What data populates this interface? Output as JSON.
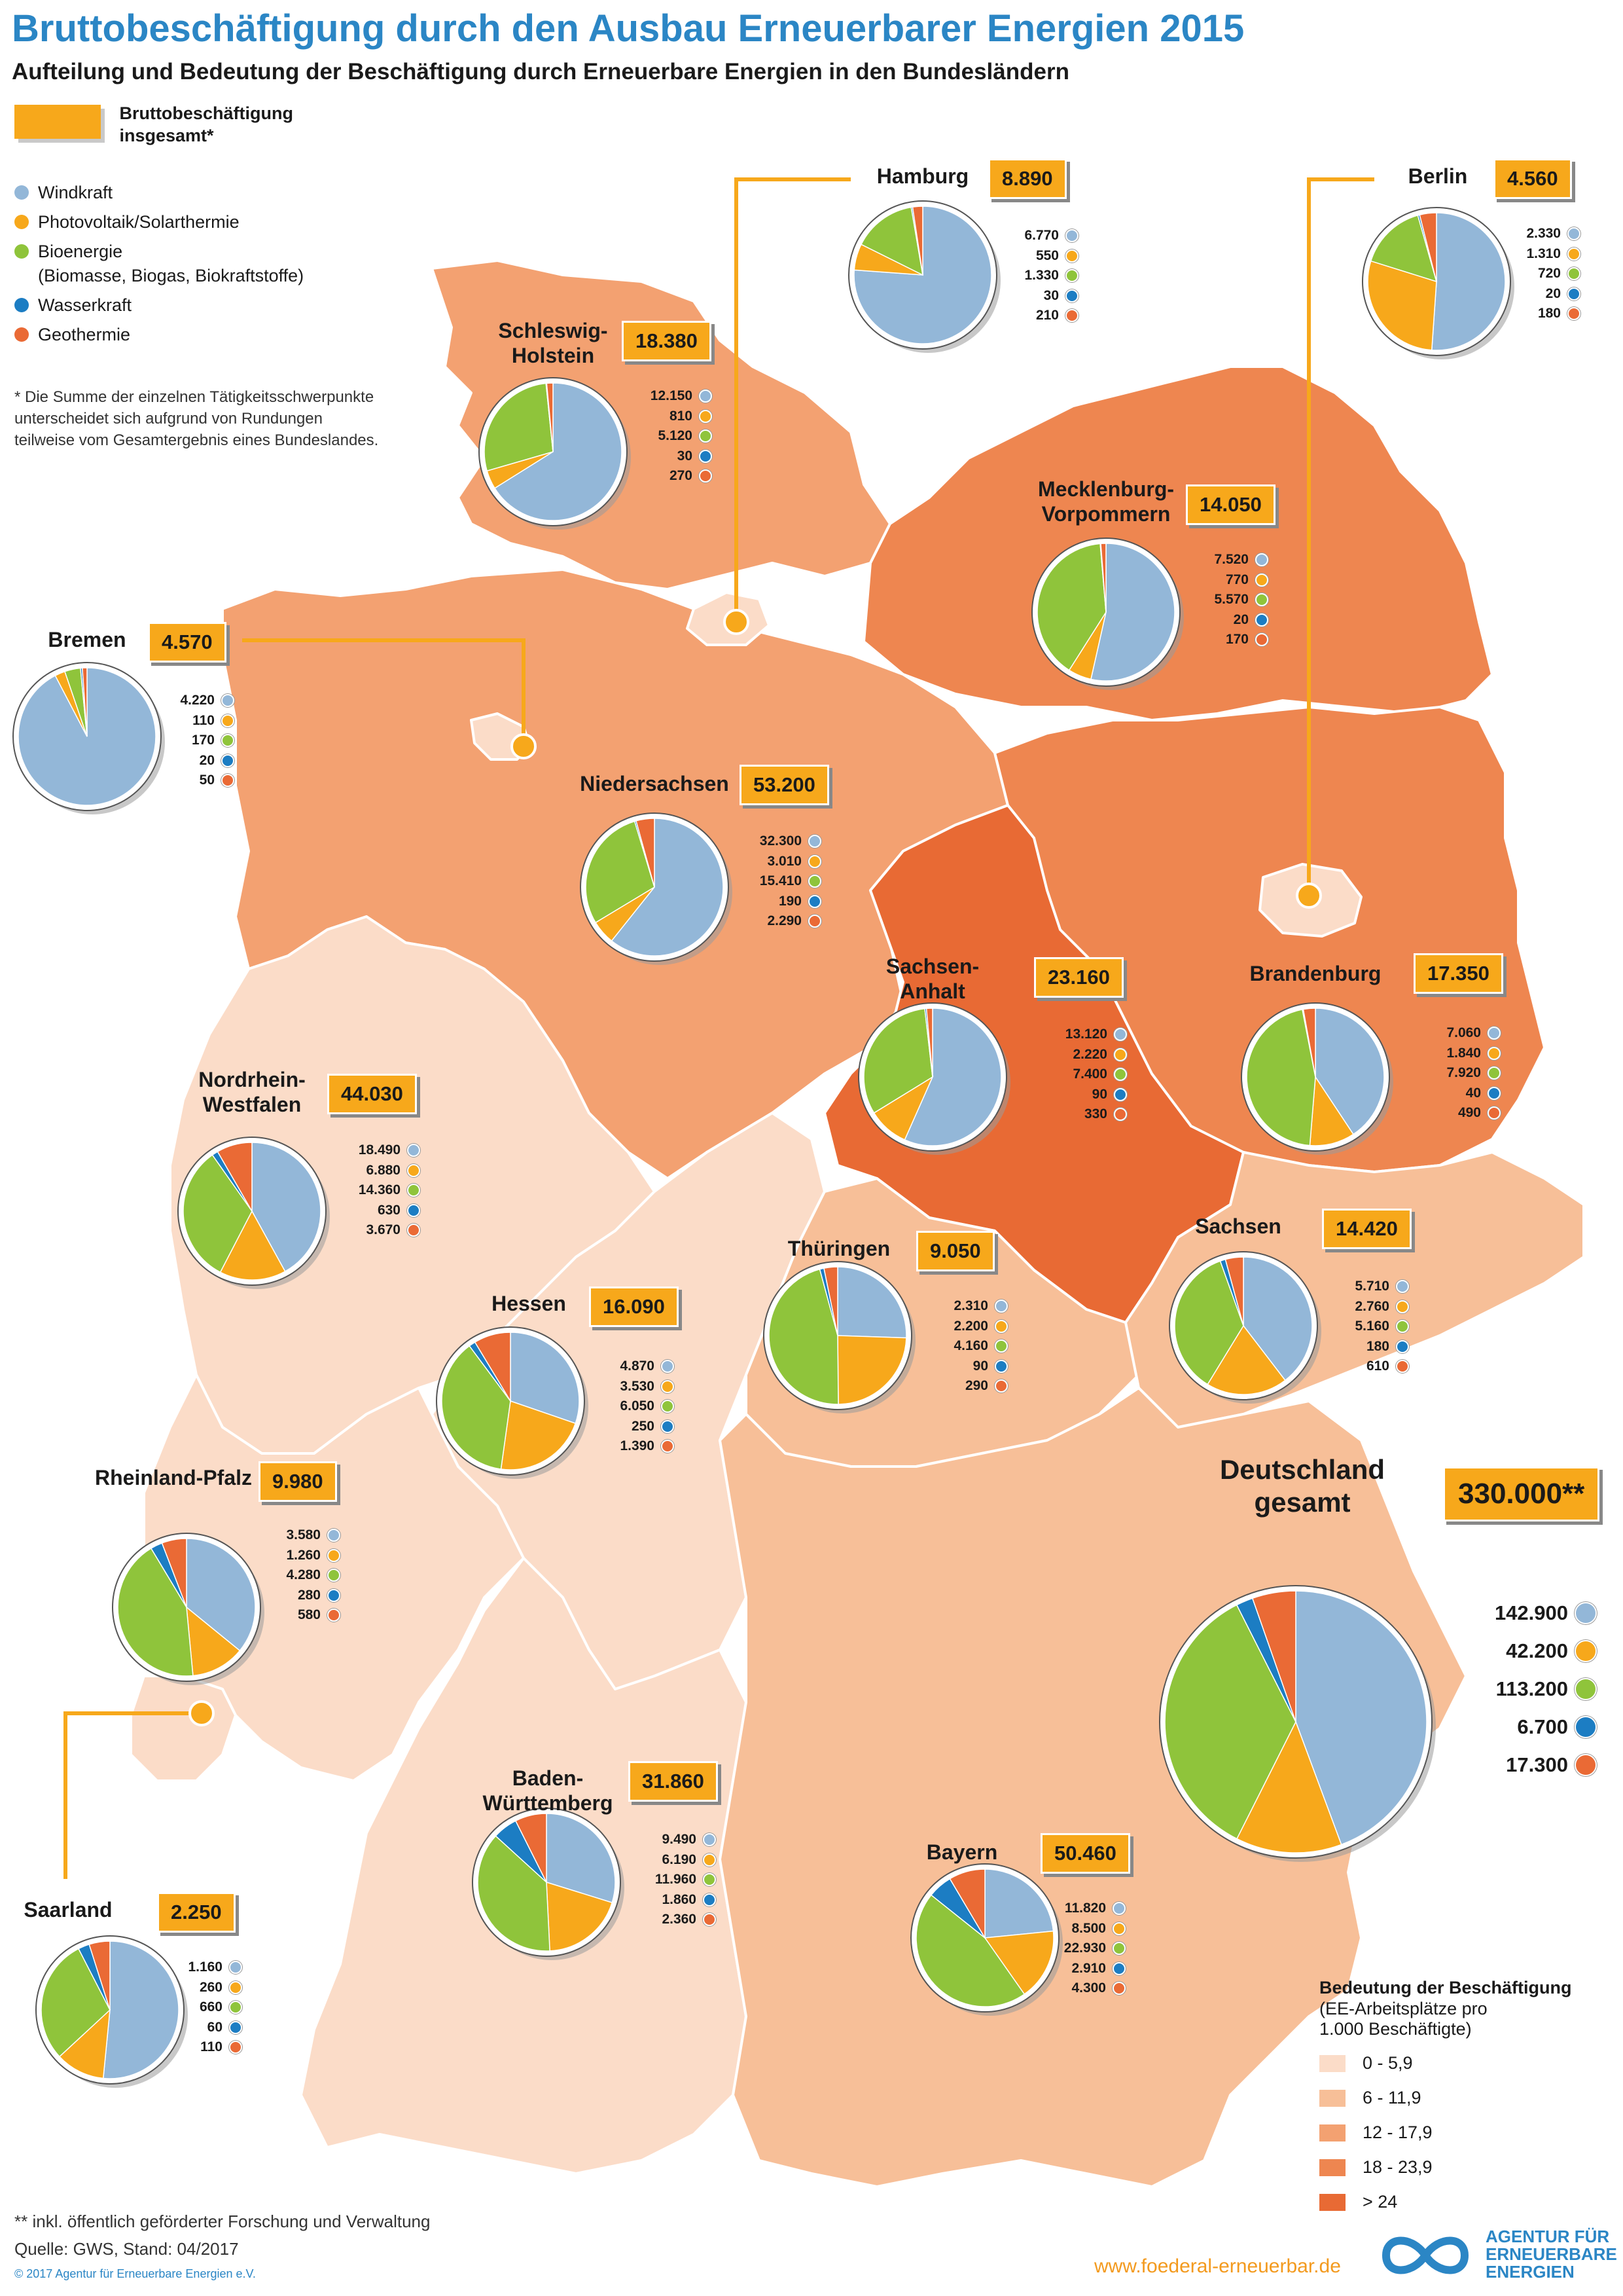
{
  "title": "Bruttobeschäftigung durch den Ausbau Erneuerbarer Energien 2015",
  "subtitle": "Aufteilung und Bedeutung der Beschäftigung durch Erneuerbare Energien in den Bundesländern",
  "legend": {
    "total_label_1": "Bruttobeschäftigung",
    "total_label_2": "insgesamt*",
    "sources": [
      {
        "label": "Windkraft",
        "color": "#93b7d8"
      },
      {
        "label": "Photovoltaik/Solarthermie",
        "color": "#f7a81b"
      },
      {
        "label": "Bioenergie",
        "color": "#8fc43b"
      },
      {
        "label": "Wasserkraft",
        "color": "#1c7dc3"
      },
      {
        "label": "Geothermie",
        "color": "#ea6a35"
      }
    ],
    "bio_sub": "(Biomasse, Biogas, Biokraftstoffe)"
  },
  "footnote_rounding": "* Die Summe der einzelnen Tätigkeitsschwerpunkte unterscheidet sich aufgrund von Rundungen teilweise vom Gesamtergebnis eines Bundeslandes.",
  "states": [
    {
      "name": [
        "Hamburg"
      ],
      "total": "8.890",
      "values": [
        "6.770",
        "550",
        "1.330",
        "30",
        "210"
      ],
      "shares": [
        6770,
        550,
        1330,
        30,
        210
      ]
    },
    {
      "name": [
        "Berlin"
      ],
      "total": "4.560",
      "values": [
        "2.330",
        "1.310",
        "720",
        "20",
        "180"
      ],
      "shares": [
        2330,
        1310,
        720,
        20,
        180
      ]
    },
    {
      "name": [
        "Schleswig-",
        "Holstein"
      ],
      "total": "18.380",
      "values": [
        "12.150",
        "810",
        "5.120",
        "30",
        "270"
      ],
      "shares": [
        12150,
        810,
        5120,
        30,
        270
      ]
    },
    {
      "name": [
        "Mecklenburg-",
        "Vorpommern"
      ],
      "total": "14.050",
      "values": [
        "7.520",
        "770",
        "5.570",
        "20",
        "170"
      ],
      "shares": [
        7520,
        770,
        5570,
        20,
        170
      ]
    },
    {
      "name": [
        "Bremen"
      ],
      "total": "4.570",
      "values": [
        "4.220",
        "110",
        "170",
        "20",
        "50"
      ],
      "shares": [
        4220,
        110,
        170,
        20,
        50
      ]
    },
    {
      "name": [
        "Niedersachsen"
      ],
      "total": "53.200",
      "values": [
        "32.300",
        "3.010",
        "15.410",
        "190",
        "2.290"
      ],
      "shares": [
        32300,
        3010,
        15410,
        190,
        2290
      ]
    },
    {
      "name": [
        "Sachsen-",
        "Anhalt"
      ],
      "total": "23.160",
      "values": [
        "13.120",
        "2.220",
        "7.400",
        "90",
        "330"
      ],
      "shares": [
        13120,
        2220,
        7400,
        90,
        330
      ]
    },
    {
      "name": [
        "Brandenburg"
      ],
      "total": "17.350",
      "values": [
        "7.060",
        "1.840",
        "7.920",
        "40",
        "490"
      ],
      "shares": [
        7060,
        1840,
        7920,
        40,
        490
      ]
    },
    {
      "name": [
        "Nordrhein-",
        "Westfalen"
      ],
      "total": "44.030",
      "values": [
        "18.490",
        "6.880",
        "14.360",
        "630",
        "3.670"
      ],
      "shares": [
        18490,
        6880,
        14360,
        630,
        3670
      ]
    },
    {
      "name": [
        "Thüringen"
      ],
      "total": "9.050",
      "values": [
        "2.310",
        "2.200",
        "4.160",
        "90",
        "290"
      ],
      "shares": [
        2310,
        2200,
        4160,
        90,
        290
      ]
    },
    {
      "name": [
        "Sachsen"
      ],
      "total": "14.420",
      "values": [
        "5.710",
        "2.760",
        "5.160",
        "180",
        "610"
      ],
      "shares": [
        5710,
        2760,
        5160,
        180,
        610
      ]
    },
    {
      "name": [
        "Hessen"
      ],
      "total": "16.090",
      "values": [
        "4.870",
        "3.530",
        "6.050",
        "250",
        "1.390"
      ],
      "shares": [
        4870,
        3530,
        6050,
        250,
        1390
      ]
    },
    {
      "name": [
        "Rheinland-Pfalz"
      ],
      "total": "9.980",
      "values": [
        "3.580",
        "1.260",
        "4.280",
        "280",
        "580"
      ],
      "shares": [
        3580,
        1260,
        4280,
        280,
        580
      ]
    },
    {
      "name": [
        "Baden-",
        "Württemberg"
      ],
      "total": "31.860",
      "values": [
        "9.490",
        "6.190",
        "11.960",
        "1.860",
        "2.360"
      ],
      "shares": [
        9490,
        6190,
        11960,
        1860,
        2360
      ]
    },
    {
      "name": [
        "Bayern"
      ],
      "total": "50.460",
      "values": [
        "11.820",
        "8.500",
        "22.930",
        "2.910",
        "4.300"
      ],
      "shares": [
        11820,
        8500,
        22930,
        2910,
        4300
      ]
    },
    {
      "name": [
        "Saarland"
      ],
      "total": "2.250",
      "values": [
        "1.160",
        "260",
        "660",
        "60",
        "110"
      ],
      "shares": [
        1160,
        260,
        660,
        60,
        110
      ]
    }
  ],
  "germany": {
    "name": [
      "Deutschland",
      "gesamt"
    ],
    "total": "330.000**",
    "values": [
      "142.900",
      "42.200",
      "113.200",
      "6.700",
      "17.300"
    ],
    "shares": [
      142900,
      42200,
      113200,
      6700,
      17300
    ]
  },
  "scale": {
    "title": "Bedeutung der Beschäftigung",
    "sub1": "(EE-Arbeitsplätze pro",
    "sub2": "1.000 Beschäftigte)",
    "classes": [
      {
        "label": "0 - 5,9",
        "color": "#fbdcc8"
      },
      {
        "label": "6 - 11,9",
        "color": "#f7bf98"
      },
      {
        "label": "12 - 17,9",
        "color": "#f3a171"
      },
      {
        "label": "18 - 23,9",
        "color": "#ee8650"
      },
      {
        "label": "> 24",
        "color": "#e86a34"
      }
    ]
  },
  "footer": {
    "note": "** inkl. öffentlich geförderter Forschung und Verwaltung",
    "source": "Quelle: GWS, Stand: 04/2017",
    "copyright": "© 2017 Agentur für Erneuerbare Energien e.V.",
    "website": "www.foederal-erneuerbar.de",
    "logo_1": "AGENTUR FÜR",
    "logo_2": "ERNEUERBARE",
    "logo_3": "ENERGIEN"
  }
}
